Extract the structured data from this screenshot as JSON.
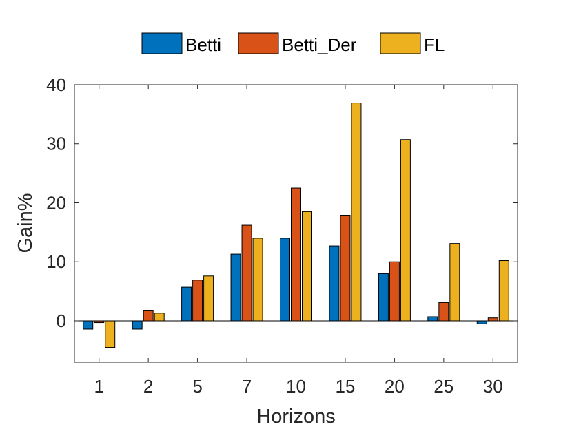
{
  "chart_data": {
    "type": "bar",
    "xlabel": "Horizons",
    "ylabel": "Gain%",
    "categories": [
      "1",
      "2",
      "5",
      "7",
      "10",
      "15",
      "20",
      "25",
      "30"
    ],
    "series": [
      {
        "name": "Betti",
        "color": "#0072BD",
        "values": [
          -1.4,
          -1.4,
          5.7,
          11.3,
          14.0,
          12.7,
          8.0,
          0.7,
          -0.5
        ]
      },
      {
        "name": "Betti_Der",
        "color": "#D95319",
        "values": [
          -0.3,
          1.8,
          6.9,
          16.2,
          22.5,
          17.9,
          10.0,
          3.1,
          0.5
        ]
      },
      {
        "name": "FL",
        "color": "#EDB120",
        "values": [
          -4.5,
          1.3,
          7.6,
          14.0,
          18.5,
          36.9,
          30.7,
          13.1,
          10.2
        ]
      }
    ],
    "ylim": [
      -7,
      40
    ],
    "yticks": [
      0,
      10,
      20,
      30,
      40
    ],
    "grid": false,
    "legend_position": "top-center"
  }
}
